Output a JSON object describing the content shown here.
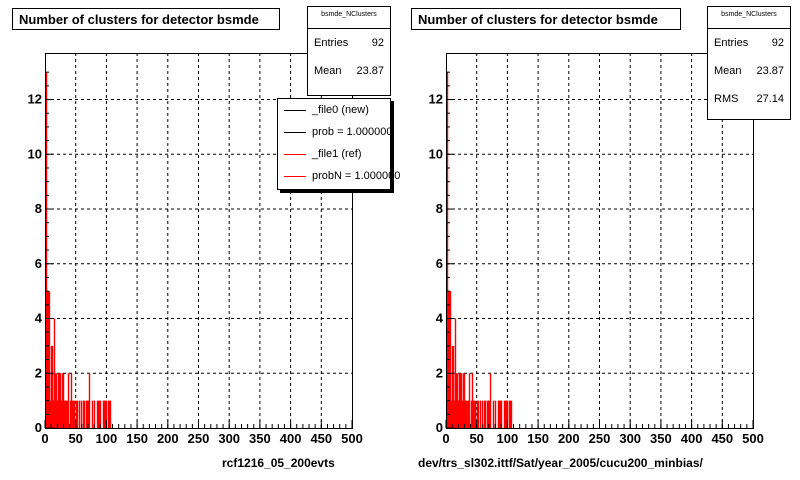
{
  "chart_data": [
    {
      "type": "bar",
      "title": "Number of clusters for detector bsmde",
      "xlabel": "rcf1216_05_200evts",
      "ylabel": "",
      "xlim": [
        0,
        500
      ],
      "ylim": [
        0,
        13.7
      ],
      "xticks": [
        0,
        50,
        100,
        150,
        200,
        250,
        300,
        350,
        400,
        450,
        500
      ],
      "yticks": [
        0,
        2,
        4,
        6,
        8,
        10,
        12
      ],
      "grid": true,
      "stats": {
        "name": "bsmde_NClusters",
        "rows": [
          {
            "label": "Entries",
            "value": "92"
          },
          {
            "label": "Mean",
            "value": "23.87"
          }
        ]
      },
      "legend": {
        "position": "top-right",
        "entries": [
          {
            "label": "_file0 (new)",
            "color": "#000000"
          },
          {
            "label": "prob = 1.000000",
            "color": "#000000"
          },
          {
            "label": "_file1 (ref)",
            "color": "#ff0000"
          },
          {
            "label": "probN = 1.000000",
            "color": "#ff0000"
          }
        ]
      },
      "series": [
        {
          "color": "#ff0000",
          "x": [
            1,
            2,
            3,
            4,
            5,
            6,
            7,
            8,
            9,
            10,
            11,
            12,
            13,
            14,
            15,
            16,
            17,
            18,
            19,
            20,
            21,
            22,
            23,
            24,
            25,
            26,
            27,
            28,
            29,
            30,
            31,
            32,
            33,
            34,
            36,
            38,
            40,
            42,
            44,
            46,
            48,
            50,
            52,
            56,
            58,
            62,
            64,
            66,
            68,
            70,
            72,
            76,
            80,
            84,
            86,
            88,
            90,
            94,
            96,
            98,
            100,
            102,
            104,
            106
          ],
          "y": [
            13,
            3,
            5,
            1,
            5,
            2,
            5,
            1,
            3,
            1,
            2,
            3,
            1,
            1,
            4,
            1,
            2,
            2,
            1,
            1,
            2,
            1,
            2,
            1,
            2,
            1,
            1,
            2,
            1,
            2,
            1,
            1,
            1,
            1,
            1,
            2,
            1,
            2,
            1,
            1,
            1,
            1,
            1,
            1,
            1,
            1,
            1,
            1,
            1,
            1,
            2,
            1,
            1,
            1,
            1,
            1,
            1,
            1,
            1,
            1,
            1,
            1,
            1,
            1
          ]
        }
      ]
    },
    {
      "type": "bar",
      "title": "Number of clusters for detector bsmde",
      "xlabel": "dev/trs_sl302.ittf/Sat/year_2005/cucu200_minbias/",
      "ylabel": "",
      "xlim": [
        0,
        500
      ],
      "ylim": [
        0,
        13.7
      ],
      "xticks": [
        0,
        50,
        100,
        150,
        200,
        250,
        300,
        350,
        400,
        450,
        500
      ],
      "yticks": [
        0,
        2,
        4,
        6,
        8,
        10,
        12
      ],
      "grid": true,
      "stats": {
        "name": "bsmde_NClusters",
        "rows": [
          {
            "label": "Entries",
            "value": "92"
          },
          {
            "label": "Mean",
            "value": "23.87"
          },
          {
            "label": "RMS",
            "value": "27.14"
          }
        ]
      },
      "series": [
        {
          "color": "#ff0000",
          "x": [
            1,
            2,
            3,
            4,
            5,
            6,
            7,
            8,
            9,
            10,
            11,
            12,
            13,
            14,
            15,
            16,
            17,
            18,
            19,
            20,
            21,
            22,
            23,
            24,
            25,
            26,
            27,
            28,
            29,
            30,
            31,
            32,
            33,
            34,
            36,
            38,
            40,
            42,
            44,
            46,
            48,
            50,
            52,
            56,
            58,
            62,
            64,
            66,
            68,
            70,
            72,
            76,
            80,
            84,
            86,
            88,
            90,
            94,
            96,
            98,
            100,
            102,
            104,
            106
          ],
          "y": [
            13,
            3,
            5,
            1,
            5,
            2,
            5,
            1,
            3,
            1,
            2,
            3,
            1,
            1,
            4,
            1,
            2,
            2,
            1,
            1,
            2,
            1,
            2,
            1,
            2,
            1,
            1,
            2,
            1,
            2,
            1,
            1,
            1,
            1,
            1,
            2,
            1,
            2,
            1,
            1,
            1,
            1,
            1,
            1,
            1,
            1,
            1,
            1,
            1,
            1,
            2,
            1,
            1,
            1,
            1,
            1,
            1,
            1,
            1,
            1,
            1,
            1,
            1,
            1
          ]
        }
      ]
    }
  ]
}
